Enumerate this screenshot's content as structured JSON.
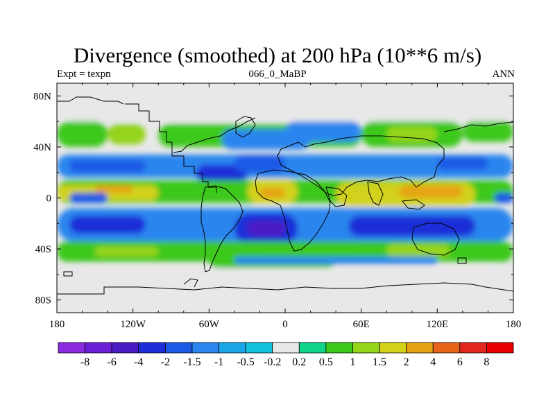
{
  "title": "Divergence (smoothed) at 200 hPa (10**6 m/s)",
  "subtitle_left": "Expt = texpn",
  "subtitle_center": "066_0_MaBP",
  "subtitle_right": "ANN",
  "chart_data": {
    "type": "heatmap",
    "projection": "cylindrical-equidistant",
    "variable": "divergence (smoothed)",
    "level": "200 hPa",
    "units": "10**6 m/s",
    "x_range": [
      -180,
      180
    ],
    "y_range": [
      -90,
      90
    ],
    "x_ticks": [
      {
        "value": -180,
        "label": "180"
      },
      {
        "value": -120,
        "label": "120W"
      },
      {
        "value": -60,
        "label": "60W"
      },
      {
        "value": 0,
        "label": "0"
      },
      {
        "value": 60,
        "label": "60E"
      },
      {
        "value": 120,
        "label": "120E"
      },
      {
        "value": 180,
        "label": "180"
      }
    ],
    "y_ticks": [
      {
        "value": 80,
        "label": "80N"
      },
      {
        "value": 40,
        "label": "40N"
      },
      {
        "value": 0,
        "label": "0"
      },
      {
        "value": -40,
        "label": "40S"
      },
      {
        "value": -80,
        "label": "80S"
      }
    ],
    "contour_levels": [
      "-8",
      "-6",
      "-4",
      "-2",
      "-1.5",
      "-1",
      "-0.5",
      "-0.2",
      "0.2",
      "0.5",
      "1",
      "1.5",
      "2",
      "4",
      "6",
      "8"
    ],
    "colors": [
      "#8a2be2",
      "#6a1fd6",
      "#4b1cc4",
      "#1f2fd8",
      "#1c5ae6",
      "#2b86ee",
      "#1aa6e8",
      "#12c2dc",
      "#e8e8e8",
      "#10d488",
      "#3cc81c",
      "#94d41a",
      "#d2d21a",
      "#e6a414",
      "#e86418",
      "#e2261e",
      "#e80000"
    ],
    "field_regions": [
      {
        "lon": [
          -180,
          180
        ],
        "lat": [
          60,
          90
        ],
        "level_index": 8
      },
      {
        "lon": [
          -180,
          180
        ],
        "lat": [
          -90,
          -55
        ],
        "level_index": 8
      },
      {
        "lon": [
          -180,
          -140
        ],
        "lat": [
          40,
          60
        ],
        "level_index": 10
      },
      {
        "lon": [
          -140,
          -110
        ],
        "lat": [
          42,
          58
        ],
        "level_index": 11
      },
      {
        "lon": [
          -100,
          60
        ],
        "lat": [
          40,
          58
        ],
        "level_index": 10
      },
      {
        "lon": [
          -50,
          20
        ],
        "lat": [
          38,
          54
        ],
        "level_index": 5
      },
      {
        "lon": [
          0,
          60
        ],
        "lat": [
          44,
          60
        ],
        "level_index": 5
      },
      {
        "lon": [
          60,
          140
        ],
        "lat": [
          40,
          60
        ],
        "level_index": 10
      },
      {
        "lon": [
          80,
          120
        ],
        "lat": [
          44,
          56
        ],
        "level_index": 11
      },
      {
        "lon": [
          140,
          180
        ],
        "lat": [
          44,
          60
        ],
        "level_index": 10
      },
      {
        "lon": [
          -180,
          180
        ],
        "lat": [
          16,
          34
        ],
        "level_index": 5
      },
      {
        "lon": [
          -170,
          -110
        ],
        "lat": [
          20,
          30
        ],
        "level_index": 4
      },
      {
        "lon": [
          -70,
          -30
        ],
        "lat": [
          12,
          26
        ],
        "level_index": 3
      },
      {
        "lon": [
          -40,
          0
        ],
        "lat": [
          20,
          34
        ],
        "level_index": 4
      },
      {
        "lon": [
          120,
          160
        ],
        "lat": [
          22,
          32
        ],
        "level_index": 4
      },
      {
        "lon": [
          -180,
          180
        ],
        "lat": [
          -4,
          14
        ],
        "level_index": 10
      },
      {
        "lon": [
          -180,
          -100
        ],
        "lat": [
          -2,
          10
        ],
        "level_index": 12
      },
      {
        "lon": [
          -150,
          -120
        ],
        "lat": [
          4,
          10
        ],
        "level_index": 13
      },
      {
        "lon": [
          -30,
          10
        ],
        "lat": [
          -4,
          14
        ],
        "level_index": 12
      },
      {
        "lon": [
          -20,
          0
        ],
        "lat": [
          0,
          8
        ],
        "level_index": 13
      },
      {
        "lon": [
          40,
          150
        ],
        "lat": [
          -6,
          12
        ],
        "level_index": 12
      },
      {
        "lon": [
          90,
          140
        ],
        "lat": [
          0,
          10
        ],
        "level_index": 13
      },
      {
        "lon": [
          -170,
          -140
        ],
        "lat": [
          -4,
          4
        ],
        "level_index": 4
      },
      {
        "lon": [
          165,
          180
        ],
        "lat": [
          -4,
          4
        ],
        "level_index": 4
      },
      {
        "lon": [
          -180,
          180
        ],
        "lat": [
          -34,
          -8
        ],
        "level_index": 5
      },
      {
        "lon": [
          -170,
          -110
        ],
        "lat": [
          -28,
          -14
        ],
        "level_index": 3
      },
      {
        "lon": [
          -40,
          10
        ],
        "lat": [
          -36,
          -12
        ],
        "level_index": 3
      },
      {
        "lon": [
          -30,
          0
        ],
        "lat": [
          -30,
          -18
        ],
        "level_index": 2
      },
      {
        "lon": [
          50,
          150
        ],
        "lat": [
          -30,
          -14
        ],
        "level_index": 3
      },
      {
        "lon": [
          -180,
          180
        ],
        "lat": [
          -50,
          -34
        ],
        "level_index": 10
      },
      {
        "lon": [
          -150,
          -100
        ],
        "lat": [
          -46,
          -38
        ],
        "level_index": 11
      },
      {
        "lon": [
          -60,
          40
        ],
        "lat": [
          -55,
          -42
        ],
        "level_index": 10
      },
      {
        "lon": [
          -40,
          120
        ],
        "lat": [
          -52,
          -46
        ],
        "level_index": 5
      },
      {
        "lon": [
          80,
          130
        ],
        "lat": [
          -46,
          -36
        ],
        "level_index": 11
      }
    ],
    "land_outlines": true
  }
}
